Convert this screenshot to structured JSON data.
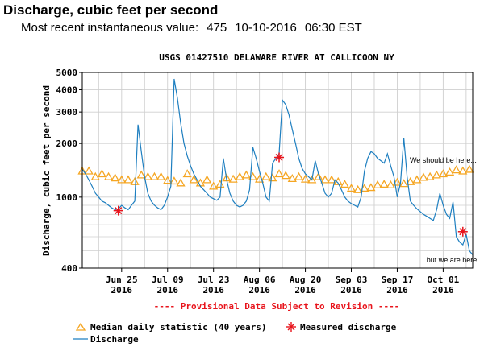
{
  "header": {
    "title": "Discharge, cubic feet per second",
    "subtitle_label": "Most recent instantaneous value:",
    "subtitle_value": "475",
    "subtitle_date": "10-10-2016",
    "subtitle_time": "06:30 EST"
  },
  "chart_data": {
    "type": "line",
    "title": "USGS 01427510 DELAWARE RIVER AT CALLICOON NY",
    "ylabel": "Discharge, cubic feet per second",
    "xlabel": "",
    "y_scale": "log",
    "ylim": [
      400,
      5000
    ],
    "xlim": [
      "2016-06-13",
      "2016-10-10"
    ],
    "grid": true,
    "y_ticks": [
      400,
      1000,
      2000,
      3000,
      4000,
      5000
    ],
    "x_ticks": [
      {
        "date": "2016-06-25",
        "label": "Jun 25",
        "year": "2016"
      },
      {
        "date": "2016-07-09",
        "label": "Jul 09",
        "year": "2016"
      },
      {
        "date": "2016-07-23",
        "label": "Jul 23",
        "year": "2016"
      },
      {
        "date": "2016-08-06",
        "label": "Aug 06",
        "year": "2016"
      },
      {
        "date": "2016-08-20",
        "label": "Aug 20",
        "year": "2016"
      },
      {
        "date": "2016-09-03",
        "label": "Sep 03",
        "year": "2016"
      },
      {
        "date": "2016-09-17",
        "label": "Sep 17",
        "year": "2016"
      },
      {
        "date": "2016-10-01",
        "label": "Oct 01",
        "year": "2016"
      }
    ],
    "series": [
      {
        "name": "Discharge",
        "color": "#1e7fc0",
        "points": [
          [
            "2016-06-13",
            1430
          ],
          [
            "2016-06-14",
            1350
          ],
          [
            "2016-06-15",
            1250
          ],
          [
            "2016-06-16",
            1150
          ],
          [
            "2016-06-17",
            1050
          ],
          [
            "2016-06-18",
            1000
          ],
          [
            "2016-06-19",
            950
          ],
          [
            "2016-06-20",
            930
          ],
          [
            "2016-06-21",
            900
          ],
          [
            "2016-06-22",
            870
          ],
          [
            "2016-06-23",
            850
          ],
          [
            "2016-06-24",
            860
          ],
          [
            "2016-06-25",
            900
          ],
          [
            "2016-06-26",
            870
          ],
          [
            "2016-06-27",
            850
          ],
          [
            "2016-06-28",
            900
          ],
          [
            "2016-06-29",
            950
          ],
          [
            "2016-06-30",
            2550
          ],
          [
            "2016-07-01",
            1800
          ],
          [
            "2016-07-02",
            1300
          ],
          [
            "2016-07-03",
            1050
          ],
          [
            "2016-07-04",
            950
          ],
          [
            "2016-07-05",
            900
          ],
          [
            "2016-07-06",
            870
          ],
          [
            "2016-07-07",
            850
          ],
          [
            "2016-07-08",
            900
          ],
          [
            "2016-07-09",
            1000
          ],
          [
            "2016-07-10",
            1150
          ],
          [
            "2016-07-11",
            4600
          ],
          [
            "2016-07-12",
            3600
          ],
          [
            "2016-07-13",
            2600
          ],
          [
            "2016-07-14",
            2000
          ],
          [
            "2016-07-15",
            1700
          ],
          [
            "2016-07-16",
            1500
          ],
          [
            "2016-07-17",
            1350
          ],
          [
            "2016-07-18",
            1250
          ],
          [
            "2016-07-19",
            1150
          ],
          [
            "2016-07-20",
            1100
          ],
          [
            "2016-07-21",
            1050
          ],
          [
            "2016-07-22",
            1000
          ],
          [
            "2016-07-23",
            980
          ],
          [
            "2016-07-24",
            960
          ],
          [
            "2016-07-25",
            1000
          ],
          [
            "2016-07-26",
            1650
          ],
          [
            "2016-07-27",
            1250
          ],
          [
            "2016-07-28",
            1050
          ],
          [
            "2016-07-29",
            950
          ],
          [
            "2016-07-30",
            900
          ],
          [
            "2016-07-31",
            880
          ],
          [
            "2016-08-01",
            900
          ],
          [
            "2016-08-02",
            950
          ],
          [
            "2016-08-03",
            1100
          ],
          [
            "2016-08-04",
            1900
          ],
          [
            "2016-08-05",
            1650
          ],
          [
            "2016-08-06",
            1400
          ],
          [
            "2016-08-07",
            1200
          ],
          [
            "2016-08-08",
            1000
          ],
          [
            "2016-08-09",
            950
          ],
          [
            "2016-08-10",
            1550
          ],
          [
            "2016-08-11",
            1650
          ],
          [
            "2016-08-12",
            1750
          ],
          [
            "2016-08-13",
            3500
          ],
          [
            "2016-08-14",
            3300
          ],
          [
            "2016-08-15",
            2900
          ],
          [
            "2016-08-16",
            2400
          ],
          [
            "2016-08-17",
            2000
          ],
          [
            "2016-08-18",
            1650
          ],
          [
            "2016-08-19",
            1450
          ],
          [
            "2016-08-20",
            1350
          ],
          [
            "2016-08-21",
            1300
          ],
          [
            "2016-08-22",
            1250
          ],
          [
            "2016-08-23",
            1600
          ],
          [
            "2016-08-24",
            1350
          ],
          [
            "2016-08-25",
            1200
          ],
          [
            "2016-08-26",
            1050
          ],
          [
            "2016-08-27",
            1000
          ],
          [
            "2016-08-28",
            1050
          ],
          [
            "2016-08-29",
            1250
          ],
          [
            "2016-08-30",
            1200
          ],
          [
            "2016-08-31",
            1100
          ],
          [
            "2016-09-01",
            1000
          ],
          [
            "2016-09-02",
            950
          ],
          [
            "2016-09-03",
            920
          ],
          [
            "2016-09-04",
            900
          ],
          [
            "2016-09-05",
            880
          ],
          [
            "2016-09-06",
            1000
          ],
          [
            "2016-09-07",
            1400
          ],
          [
            "2016-09-08",
            1650
          ],
          [
            "2016-09-09",
            1800
          ],
          [
            "2016-09-10",
            1750
          ],
          [
            "2016-09-11",
            1650
          ],
          [
            "2016-09-12",
            1600
          ],
          [
            "2016-09-13",
            1550
          ],
          [
            "2016-09-14",
            1750
          ],
          [
            "2016-09-15",
            1500
          ],
          [
            "2016-09-16",
            1300
          ],
          [
            "2016-09-17",
            1000
          ],
          [
            "2016-09-18",
            1200
          ],
          [
            "2016-09-19",
            2150
          ],
          [
            "2016-09-20",
            1300
          ],
          [
            "2016-09-21",
            950
          ],
          [
            "2016-09-22",
            900
          ],
          [
            "2016-09-23",
            860
          ],
          [
            "2016-09-24",
            830
          ],
          [
            "2016-09-25",
            800
          ],
          [
            "2016-09-26",
            780
          ],
          [
            "2016-09-27",
            760
          ],
          [
            "2016-09-28",
            740
          ],
          [
            "2016-09-29",
            850
          ],
          [
            "2016-09-30",
            1050
          ],
          [
            "2016-10-01",
            900
          ],
          [
            "2016-10-02",
            800
          ],
          [
            "2016-10-03",
            760
          ],
          [
            "2016-10-04",
            940
          ],
          [
            "2016-10-05",
            600
          ],
          [
            "2016-10-06",
            560
          ],
          [
            "2016-10-07",
            540
          ],
          [
            "2016-10-08",
            620
          ],
          [
            "2016-10-09",
            500
          ],
          [
            "2016-10-10",
            475
          ]
        ]
      },
      {
        "name": "Median daily statistic (40 years)",
        "color": "#f5a623",
        "points": [
          [
            "2016-06-13",
            1400
          ],
          [
            "2016-06-15",
            1400
          ],
          [
            "2016-06-17",
            1300
          ],
          [
            "2016-06-19",
            1350
          ],
          [
            "2016-06-21",
            1300
          ],
          [
            "2016-06-23",
            1280
          ],
          [
            "2016-06-25",
            1250
          ],
          [
            "2016-06-27",
            1250
          ],
          [
            "2016-06-29",
            1220
          ],
          [
            "2016-07-01",
            1330
          ],
          [
            "2016-07-03",
            1300
          ],
          [
            "2016-07-05",
            1300
          ],
          [
            "2016-07-07",
            1300
          ],
          [
            "2016-07-09",
            1240
          ],
          [
            "2016-07-11",
            1230
          ],
          [
            "2016-07-13",
            1200
          ],
          [
            "2016-07-15",
            1350
          ],
          [
            "2016-07-17",
            1250
          ],
          [
            "2016-07-19",
            1200
          ],
          [
            "2016-07-21",
            1250
          ],
          [
            "2016-07-23",
            1150
          ],
          [
            "2016-07-25",
            1180
          ],
          [
            "2016-07-27",
            1280
          ],
          [
            "2016-07-29",
            1260
          ],
          [
            "2016-07-31",
            1300
          ],
          [
            "2016-08-02",
            1330
          ],
          [
            "2016-08-04",
            1300
          ],
          [
            "2016-08-06",
            1260
          ],
          [
            "2016-08-08",
            1300
          ],
          [
            "2016-08-10",
            1280
          ],
          [
            "2016-08-12",
            1350
          ],
          [
            "2016-08-14",
            1320
          ],
          [
            "2016-08-16",
            1270
          ],
          [
            "2016-08-18",
            1300
          ],
          [
            "2016-08-20",
            1260
          ],
          [
            "2016-08-22",
            1250
          ],
          [
            "2016-08-24",
            1300
          ],
          [
            "2016-08-26",
            1250
          ],
          [
            "2016-08-28",
            1250
          ],
          [
            "2016-08-30",
            1220
          ],
          [
            "2016-09-01",
            1180
          ],
          [
            "2016-09-03",
            1120
          ],
          [
            "2016-09-05",
            1100
          ],
          [
            "2016-09-07",
            1120
          ],
          [
            "2016-09-09",
            1130
          ],
          [
            "2016-09-11",
            1170
          ],
          [
            "2016-09-13",
            1180
          ],
          [
            "2016-09-15",
            1170
          ],
          [
            "2016-09-17",
            1210
          ],
          [
            "2016-09-19",
            1190
          ],
          [
            "2016-09-21",
            1220
          ],
          [
            "2016-09-23",
            1250
          ],
          [
            "2016-09-25",
            1290
          ],
          [
            "2016-09-27",
            1300
          ],
          [
            "2016-09-29",
            1330
          ],
          [
            "2016-10-01",
            1350
          ],
          [
            "2016-10-03",
            1380
          ],
          [
            "2016-10-05",
            1420
          ],
          [
            "2016-10-07",
            1400
          ],
          [
            "2016-10-09",
            1430
          ]
        ]
      },
      {
        "name": "Measured discharge",
        "color": "#e8141c",
        "points": [
          [
            "2016-06-24",
            840
          ],
          [
            "2016-08-12",
            1670
          ],
          [
            "2016-10-07",
            640
          ]
        ]
      }
    ],
    "annotations": [
      {
        "text": "We should be here...",
        "date": "2016-10-01",
        "value": 1560
      },
      {
        "text": "...but we are here.",
        "date": "2016-10-03",
        "value": 430
      }
    ],
    "revision_note": "---- Provisional Data Subject to Revision ----",
    "legend": {
      "median": "Median daily statistic (40 years)",
      "measured": "Measured discharge",
      "discharge": "Discharge"
    },
    "grid_color": "#cfcfcf",
    "note_color": "#e8141c"
  }
}
